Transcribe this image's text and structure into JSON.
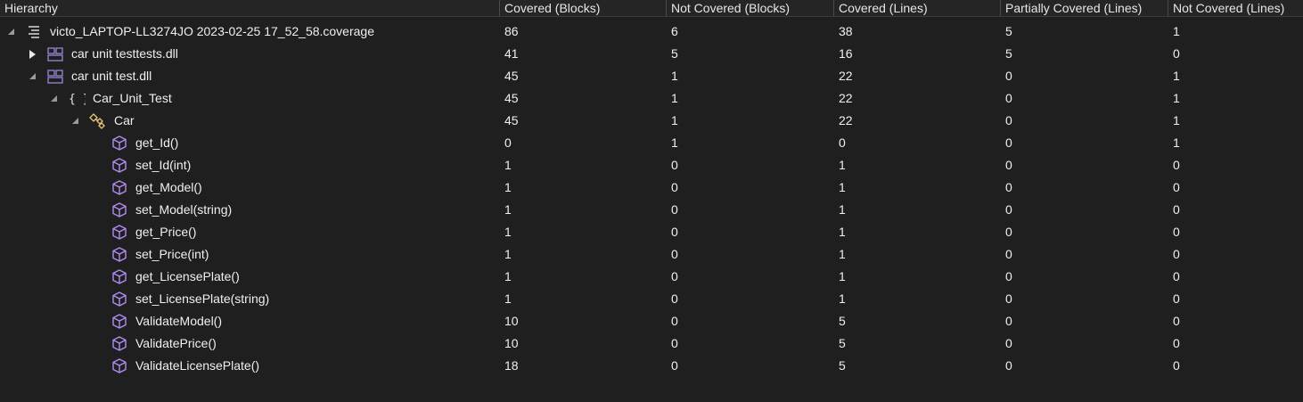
{
  "columns": [
    "Hierarchy",
    "Covered (Blocks)",
    "Not Covered (Blocks)",
    "Covered (Lines)",
    "Partially Covered (Lines)",
    "Not Covered (Lines)"
  ],
  "rows": [
    {
      "label": "victo_LAPTOP-LL3274JO 2023-02-25 17_52_58.coverage",
      "icon": "coverage-file-icon",
      "expander": "expanded",
      "level": 0,
      "covered_blocks": "86",
      "not_covered_blocks": "6",
      "covered_lines": "38",
      "partially_covered_lines": "5",
      "not_covered_lines": "1"
    },
    {
      "label": "car unit testtests.dll",
      "icon": "assembly-icon",
      "expander": "collapsed",
      "level": 1,
      "covered_blocks": "41",
      "not_covered_blocks": "5",
      "covered_lines": "16",
      "partially_covered_lines": "5",
      "not_covered_lines": "0"
    },
    {
      "label": "car unit test.dll",
      "icon": "assembly-icon",
      "expander": "expanded",
      "level": 1,
      "covered_blocks": "45",
      "not_covered_blocks": "1",
      "covered_lines": "22",
      "partially_covered_lines": "0",
      "not_covered_lines": "1"
    },
    {
      "label": "Car_Unit_Test",
      "icon": "namespace-icon",
      "expander": "expanded",
      "level": 2,
      "covered_blocks": "45",
      "not_covered_blocks": "1",
      "covered_lines": "22",
      "partially_covered_lines": "0",
      "not_covered_lines": "1"
    },
    {
      "label": "Car",
      "icon": "class-icon",
      "expander": "expanded",
      "level": 3,
      "covered_blocks": "45",
      "not_covered_blocks": "1",
      "covered_lines": "22",
      "partially_covered_lines": "0",
      "not_covered_lines": "1"
    },
    {
      "label": "get_Id()",
      "icon": "method-icon",
      "expander": "none",
      "level": 4,
      "covered_blocks": "0",
      "not_covered_blocks": "1",
      "covered_lines": "0",
      "partially_covered_lines": "0",
      "not_covered_lines": "1"
    },
    {
      "label": "set_Id(int)",
      "icon": "method-icon",
      "expander": "none",
      "level": 4,
      "covered_blocks": "1",
      "not_covered_blocks": "0",
      "covered_lines": "1",
      "partially_covered_lines": "0",
      "not_covered_lines": "0"
    },
    {
      "label": "get_Model()",
      "icon": "method-icon",
      "expander": "none",
      "level": 4,
      "covered_blocks": "1",
      "not_covered_blocks": "0",
      "covered_lines": "1",
      "partially_covered_lines": "0",
      "not_covered_lines": "0"
    },
    {
      "label": "set_Model(string)",
      "icon": "method-icon",
      "expander": "none",
      "level": 4,
      "covered_blocks": "1",
      "not_covered_blocks": "0",
      "covered_lines": "1",
      "partially_covered_lines": "0",
      "not_covered_lines": "0"
    },
    {
      "label": "get_Price()",
      "icon": "method-icon",
      "expander": "none",
      "level": 4,
      "covered_blocks": "1",
      "not_covered_blocks": "0",
      "covered_lines": "1",
      "partially_covered_lines": "0",
      "not_covered_lines": "0"
    },
    {
      "label": "set_Price(int)",
      "icon": "method-icon",
      "expander": "none",
      "level": 4,
      "covered_blocks": "1",
      "not_covered_blocks": "0",
      "covered_lines": "1",
      "partially_covered_lines": "0",
      "not_covered_lines": "0"
    },
    {
      "label": "get_LicensePlate()",
      "icon": "method-icon",
      "expander": "none",
      "level": 4,
      "covered_blocks": "1",
      "not_covered_blocks": "0",
      "covered_lines": "1",
      "partially_covered_lines": "0",
      "not_covered_lines": "0"
    },
    {
      "label": "set_LicensePlate(string)",
      "icon": "method-icon",
      "expander": "none",
      "level": 4,
      "covered_blocks": "1",
      "not_covered_blocks": "0",
      "covered_lines": "1",
      "partially_covered_lines": "0",
      "not_covered_lines": "0"
    },
    {
      "label": "ValidateModel()",
      "icon": "method-icon",
      "expander": "none",
      "level": 4,
      "covered_blocks": "10",
      "not_covered_blocks": "0",
      "covered_lines": "5",
      "partially_covered_lines": "0",
      "not_covered_lines": "0"
    },
    {
      "label": "ValidatePrice()",
      "icon": "method-icon",
      "expander": "none",
      "level": 4,
      "covered_blocks": "10",
      "not_covered_blocks": "0",
      "covered_lines": "5",
      "partially_covered_lines": "0",
      "not_covered_lines": "0"
    },
    {
      "label": "ValidateLicensePlate()",
      "icon": "method-icon",
      "expander": "none",
      "level": 4,
      "covered_blocks": "18",
      "not_covered_blocks": "0",
      "covered_lines": "5",
      "partially_covered_lines": "0",
      "not_covered_lines": "0"
    }
  ],
  "colors": {
    "background": "#1f1f1f",
    "header_background": "#252526",
    "text": "#f0f0f0",
    "assembly_icon": "#9a86d6",
    "method_icon": "#b18cf2",
    "class_icon": "#e3c77a"
  }
}
